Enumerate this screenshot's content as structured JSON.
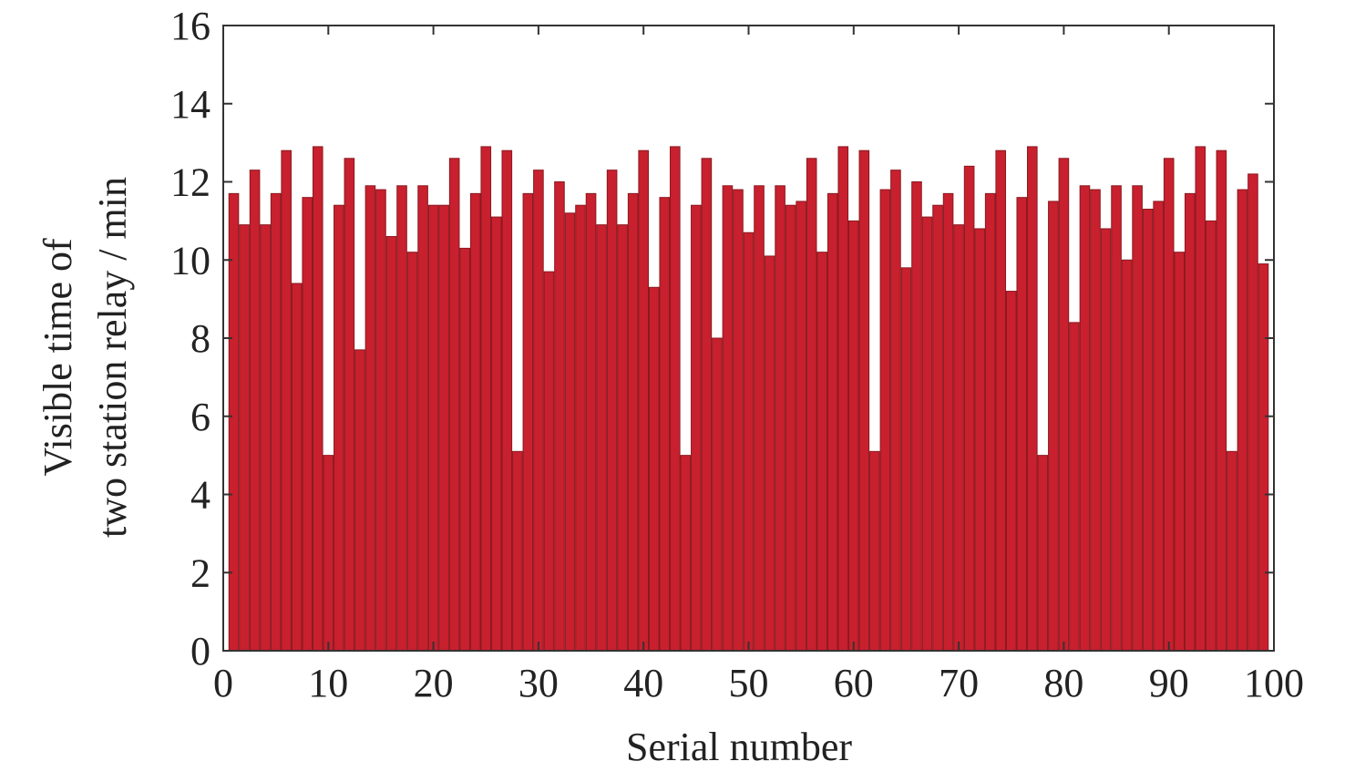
{
  "chart_data": {
    "type": "bar",
    "xlabel": "Serial number",
    "ylabel": [
      "Visible time of",
      "two station relay / min"
    ],
    "x": [
      1,
      2,
      3,
      4,
      5,
      6,
      7,
      8,
      9,
      10,
      11,
      12,
      13,
      14,
      15,
      16,
      17,
      18,
      19,
      20,
      21,
      22,
      23,
      24,
      25,
      26,
      27,
      28,
      29,
      30,
      31,
      32,
      33,
      34,
      35,
      36,
      37,
      38,
      39,
      40,
      41,
      42,
      43,
      44,
      45,
      46,
      47,
      48,
      49,
      50,
      51,
      52,
      53,
      54,
      55,
      56,
      57,
      58,
      59,
      60,
      61,
      62,
      63,
      64,
      65,
      66,
      67,
      68,
      69,
      70,
      71,
      72,
      73,
      74,
      75,
      76,
      77,
      78,
      79,
      80,
      81,
      82,
      83,
      84,
      85,
      86,
      87,
      88,
      89,
      90,
      91,
      92,
      93,
      94,
      95,
      96,
      97,
      98,
      99
    ],
    "values": [
      11.7,
      10.9,
      12.3,
      10.9,
      11.7,
      12.8,
      9.4,
      11.6,
      12.9,
      5.0,
      11.4,
      12.6,
      7.7,
      11.9,
      11.8,
      10.6,
      11.9,
      10.2,
      11.9,
      11.4,
      11.4,
      12.6,
      10.3,
      11.7,
      12.9,
      11.1,
      12.8,
      5.1,
      11.7,
      12.3,
      9.7,
      12.0,
      11.2,
      11.4,
      11.7,
      10.9,
      12.3,
      10.9,
      11.7,
      12.8,
      9.3,
      11.6,
      12.9,
      5.0,
      11.4,
      12.6,
      8.0,
      11.9,
      11.8,
      10.7,
      11.9,
      10.1,
      11.9,
      11.4,
      11.5,
      12.6,
      10.2,
      11.7,
      12.9,
      11.0,
      12.8,
      5.1,
      11.8,
      12.3,
      9.8,
      12.0,
      11.1,
      11.4,
      11.7,
      10.9,
      12.4,
      10.8,
      11.7,
      12.8,
      9.2,
      11.6,
      12.9,
      5.0,
      11.5,
      12.6,
      8.4,
      11.9,
      11.8,
      10.8,
      11.9,
      10.0,
      11.9,
      11.3,
      11.5,
      12.6,
      10.2,
      11.7,
      12.9,
      11.0,
      12.8,
      5.1,
      11.8,
      12.2,
      9.9
    ],
    "color": "#c8202e",
    "xlim": [
      0,
      100
    ],
    "xticks": [
      0,
      10,
      20,
      30,
      40,
      50,
      60,
      70,
      80,
      90,
      100
    ],
    "ylim": [
      0,
      16
    ],
    "yticks": [
      0,
      2,
      4,
      6,
      8,
      10,
      12,
      14,
      16
    ]
  }
}
